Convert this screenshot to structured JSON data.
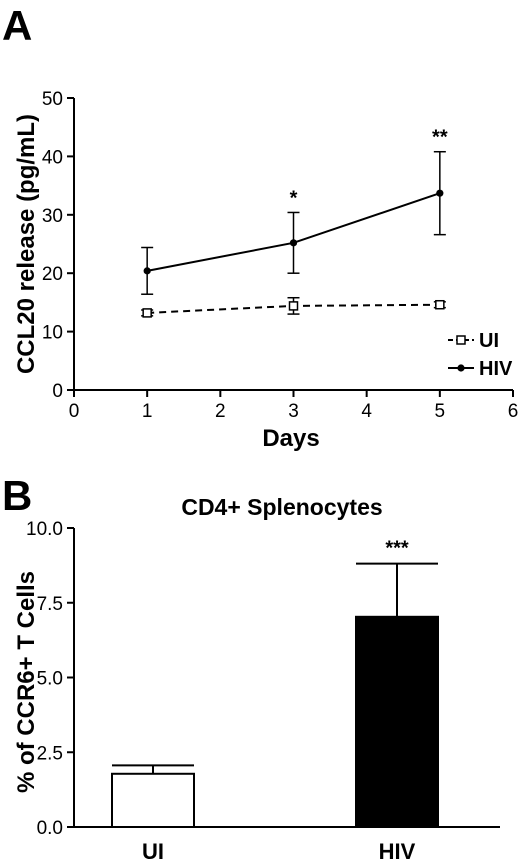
{
  "panels": {
    "a": "A",
    "b": "B"
  },
  "chart_data": [
    {
      "type": "line",
      "panel": "A",
      "title": "",
      "xlabel": "Days",
      "ylabel": "CCL20 release (pg/mL)",
      "xlim": [
        0,
        6
      ],
      "ylim": [
        0,
        50
      ],
      "xticks": [
        "0",
        "1",
        "2",
        "3",
        "4",
        "5",
        "6"
      ],
      "yticks": [
        "0",
        "10",
        "20",
        "30",
        "40",
        "50"
      ],
      "grid": false,
      "legend_position": "bottom-right",
      "series": [
        {
          "name": "UI",
          "line_style": "dashed",
          "marker": "open-square",
          "x": [
            1,
            3,
            5
          ],
          "y": [
            13.2,
            14.4,
            14.6
          ],
          "error": [
            0.5,
            1.4,
            0.5
          ]
        },
        {
          "name": "HIV",
          "line_style": "solid",
          "marker": "filled-circle",
          "x": [
            1,
            3,
            5
          ],
          "y": [
            20.4,
            25.2,
            33.7
          ],
          "error": [
            4.0,
            5.2,
            7.1
          ]
        }
      ],
      "annotations": [
        {
          "x": 3,
          "text": "*"
        },
        {
          "x": 5,
          "text": "**"
        }
      ]
    },
    {
      "type": "bar",
      "panel": "B",
      "title": "CD4+ Splenocytes",
      "xlabel": "",
      "ylabel": "% of CCR6+ T Cells",
      "ylim": [
        0,
        10
      ],
      "yticks": [
        "0.0",
        "2.5",
        "5.0",
        "7.5",
        "10.0"
      ],
      "categories": [
        "UI",
        "HIV"
      ],
      "values": [
        1.78,
        7.03
      ],
      "error": [
        0.28,
        1.78
      ],
      "colors": [
        "#ffffff",
        "#000000"
      ],
      "annotations": [
        {
          "category": "HIV",
          "text": "***"
        }
      ]
    }
  ]
}
